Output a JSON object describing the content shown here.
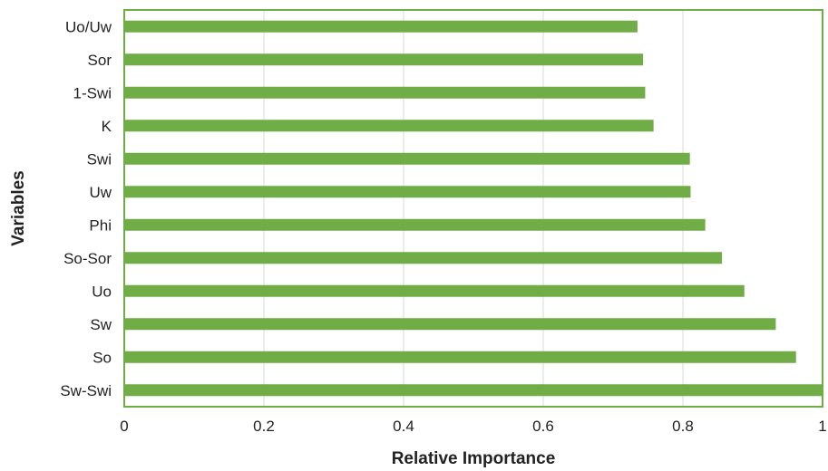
{
  "chart_data": {
    "type": "bar",
    "orientation": "horizontal",
    "title": "",
    "xlabel": "Relative Importance",
    "ylabel": "Variables",
    "xlim": [
      0,
      1
    ],
    "xticks": [
      "0",
      "0.2",
      "0.4",
      "0.6",
      "0.8",
      "1"
    ],
    "xtick_values": [
      0,
      0.2,
      0.4,
      0.6,
      0.8,
      1
    ],
    "grid": "vertical",
    "legend": "none",
    "colors": {
      "bar": "#70ad47",
      "frame": "#70ad47",
      "grid": "#d9d9d9"
    },
    "categories": [
      "Uo/Uw",
      "Sor",
      "1-Swi",
      "K",
      "Swi",
      "Uw",
      "Phi",
      "So-Sor",
      "Uo",
      "Sw",
      "So",
      "Sw-Swi"
    ],
    "values": [
      0.735,
      0.743,
      0.746,
      0.758,
      0.81,
      0.811,
      0.832,
      0.856,
      0.888,
      0.933,
      0.962,
      1.0
    ]
  }
}
